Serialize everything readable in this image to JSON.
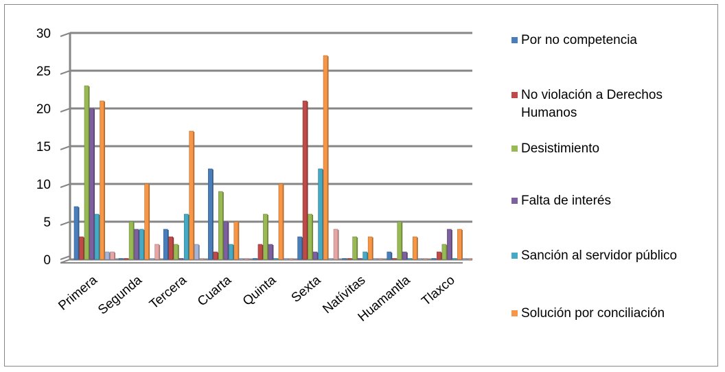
{
  "chart_data": {
    "type": "bar",
    "title": "",
    "xlabel": "",
    "ylabel": "",
    "ylim": [
      0,
      30
    ],
    "yticks": [
      "0",
      "5",
      "10",
      "15",
      "20",
      "25",
      "30"
    ],
    "grid": true,
    "legend_position": "right",
    "categories": [
      "Primera",
      "Segunda",
      "Tercera",
      "Cuarta",
      "Quinta",
      "Sexta",
      "Natívitas",
      "Huamantla",
      "Tlaxco"
    ],
    "series": [
      {
        "name": "Por no competencia",
        "color": "#4a7ebb",
        "values": [
          7,
          0,
          4,
          12,
          0,
          3,
          0,
          1,
          0
        ]
      },
      {
        "name": "No violación a Derechos Humanos",
        "color": "#be4b48",
        "values": [
          3,
          0,
          3,
          1,
          2,
          21,
          0,
          0,
          1
        ]
      },
      {
        "name": "Desistimiento",
        "color": "#98b954",
        "values": [
          23,
          5,
          2,
          9,
          6,
          6,
          3,
          5,
          2
        ]
      },
      {
        "name": "Falta de interés",
        "color": "#7d60a0",
        "values": [
          20,
          4,
          0,
          5,
          2,
          1,
          0,
          1,
          4
        ]
      },
      {
        "name": "Sanción al servidor público",
        "color": "#46aac5",
        "values": [
          6,
          4,
          6,
          2,
          0,
          12,
          1,
          0,
          0
        ]
      },
      {
        "name": "Solución por conciliación",
        "color": "#f79646",
        "values": [
          21,
          10,
          17,
          5,
          10,
          27,
          3,
          3,
          4
        ]
      },
      {
        "color": "#a5b6da",
        "values": [
          1,
          0,
          2,
          0,
          0,
          0,
          0,
          0,
          0
        ]
      },
      {
        "color": "#e6a6a5",
        "values": [
          1,
          2,
          0,
          0,
          0,
          4,
          0,
          0,
          0
        ]
      }
    ]
  }
}
